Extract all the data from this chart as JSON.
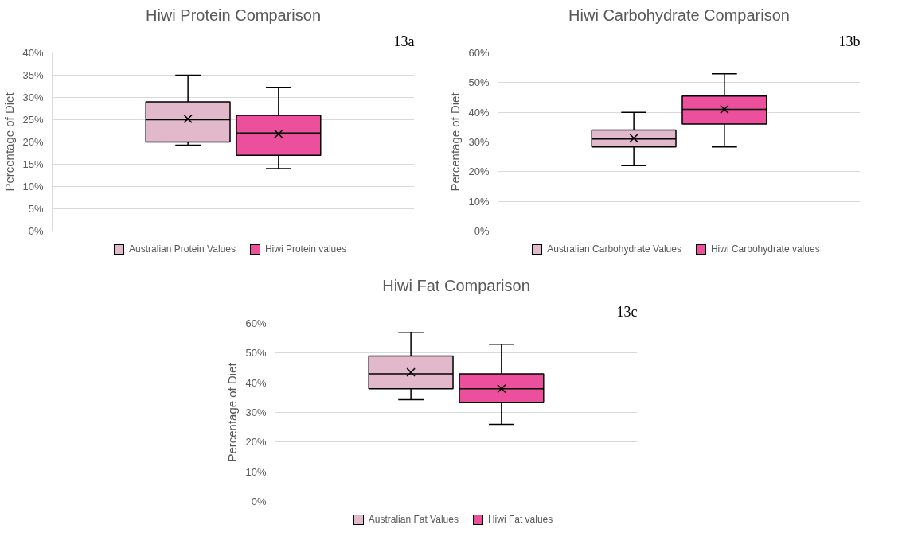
{
  "chart_data": [
    {
      "type": "box",
      "title": "Hiwi Protein Comparison",
      "ylabel": "Percentage of Diet",
      "annotations": [
        "13a"
      ],
      "categories": [
        null
      ],
      "ylim": [
        0,
        40
      ],
      "yticks": [
        {
          "value": 0,
          "label": "0%"
        },
        {
          "value": 5,
          "label": "5%"
        },
        {
          "value": 10,
          "label": "10%"
        },
        {
          "value": 15,
          "label": "15%"
        },
        {
          "value": 20,
          "label": "20%"
        },
        {
          "value": 25,
          "label": "25%"
        },
        {
          "value": 30,
          "label": "30%"
        },
        {
          "value": 35,
          "label": "35%"
        },
        {
          "value": 40,
          "label": "40%"
        }
      ],
      "grid": "y",
      "legend": "bottom",
      "tick_labels": "y",
      "series": [
        {
          "name": "Australian Protein Values",
          "color": "#e2b8cb",
          "boxes": [
            {
              "low": 19.3,
              "q1": 20,
              "median": 25,
              "q3": 29,
              "high": 35,
              "mean": 25.2
            }
          ]
        },
        {
          "name": "Hiwi Protein values",
          "color": "#ec4f9c",
          "boxes": [
            {
              "low": 14,
              "q1": 17,
              "median": 22,
              "q3": 26,
              "high": 32.2,
              "mean": 21.8
            }
          ]
        }
      ]
    },
    {
      "type": "box",
      "title": "Hiwi Carbohydrate Comparison",
      "ylabel": "Percentage of Diet",
      "annotations": [
        "13b"
      ],
      "categories": [
        null
      ],
      "ylim": [
        0,
        60
      ],
      "yticks": [
        {
          "value": 0,
          "label": "0%"
        },
        {
          "value": 10,
          "label": "10%"
        },
        {
          "value": 20,
          "label": "20%"
        },
        {
          "value": 30,
          "label": "30%"
        },
        {
          "value": 40,
          "label": "40%"
        },
        {
          "value": 50,
          "label": "50%"
        },
        {
          "value": 60,
          "label": "60%"
        }
      ],
      "grid": "y",
      "legend": "bottom",
      "tick_labels": "y",
      "series": [
        {
          "name": "Australian Carbohydrate Values",
          "color": "#e2b8cb",
          "boxes": [
            {
              "low": 22,
              "q1": 28.3,
              "median": 31,
              "q3": 34,
              "high": 40,
              "mean": 31.3
            }
          ]
        },
        {
          "name": "Hiwi Carbohydrate values",
          "color": "#ec4f9c",
          "boxes": [
            {
              "low": 28.3,
              "q1": 36,
              "median": 41,
              "q3": 45.5,
              "high": 53,
              "mean": 41
            }
          ]
        }
      ]
    },
    {
      "type": "box",
      "title": "Hiwi Fat Comparison",
      "ylabel": "Percentage of Diet",
      "annotations": [
        "13c"
      ],
      "categories": [
        null
      ],
      "ylim": [
        0,
        60
      ],
      "yticks": [
        {
          "value": 0,
          "label": "0%"
        },
        {
          "value": 10,
          "label": "10%"
        },
        {
          "value": 20,
          "label": "20%"
        },
        {
          "value": 30,
          "label": "30%"
        },
        {
          "value": 40,
          "label": "40%"
        },
        {
          "value": 50,
          "label": "50%"
        },
        {
          "value": 60,
          "label": "60%"
        }
      ],
      "grid": "y",
      "legend": "bottom",
      "tick_labels": "y",
      "series": [
        {
          "name": "Australian Fat Values",
          "color": "#e2b8cb",
          "boxes": [
            {
              "low": 34.3,
              "q1": 38,
              "median": 43,
              "q3": 49,
              "high": 57,
              "mean": 43.5
            }
          ]
        },
        {
          "name": "Hiwi Fat values",
          "color": "#ec4f9c",
          "boxes": [
            {
              "low": 26,
              "q1": 33.3,
              "median": 38,
              "q3": 43,
              "high": 53,
              "mean": 38
            }
          ]
        }
      ]
    }
  ]
}
